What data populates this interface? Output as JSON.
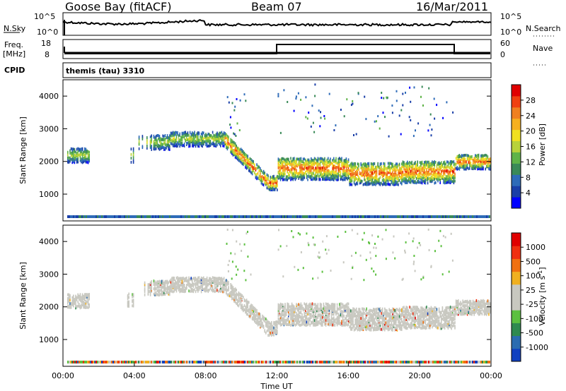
{
  "header": {
    "station": "Goose Bay (fitACF)",
    "beam": "Beam 07",
    "date": "16/Mar/2011"
  },
  "top_panels": {
    "nsky_label": "N.Sky",
    "nsky_ticks": [
      "10^5",
      "10^0"
    ],
    "nsearch_label": "N.Search",
    "nsearch_ticks": [
      "10^5",
      "10^0"
    ],
    "freq_label": "Freq.",
    "freq_unit": "[MHz]",
    "freq_ticks": [
      "18",
      "8"
    ],
    "nave_label": "Nave",
    "nave_ticks": [
      "60",
      "0"
    ],
    "cpid_label": "CPID",
    "cpid_value": "themis (tau) 3310"
  },
  "chart_data": [
    {
      "type": "heatmap",
      "title": "Power",
      "ylabel": "Slant Range [km]",
      "xlabel": "",
      "x_range_hours": [
        0,
        24
      ],
      "ylim": [
        180,
        4500
      ],
      "yticks": [
        "4000",
        "3000",
        "2000",
        "1000"
      ],
      "colorbar": {
        "label": "Power [dB]",
        "ticks": [
          "28",
          "24",
          "20",
          "16",
          "12",
          "8",
          "4"
        ],
        "colors": [
          "#0000ff",
          "#1a3fa8",
          "#2e6bb8",
          "#3a8a58",
          "#5fb348",
          "#b8d23a",
          "#f0e020",
          "#f6b020",
          "#f08020",
          "#f04010",
          "#e00000"
        ]
      }
    },
    {
      "type": "heatmap",
      "title": "Velocity",
      "ylabel": "Slant Range [km]",
      "xlabel": "Time UT",
      "x_range_hours": [
        0,
        24
      ],
      "ylim": [
        180,
        4500
      ],
      "yticks": [
        "4000",
        "3000",
        "2000",
        "1000"
      ],
      "xticks": [
        "00:00",
        "04:00",
        "08:00",
        "12:00",
        "16:00",
        "20:00",
        "00:00"
      ],
      "colorbar": {
        "label": "Velocity [m s^-1]",
        "ticks": [
          "1000",
          "500",
          "100",
          "25",
          "-25",
          "-100",
          "-500",
          "-1000"
        ],
        "colors": [
          "#1040c0",
          "#2b6cb0",
          "#2f8a50",
          "#5cc040",
          "#c8c8c0",
          "#c8c8c0",
          "#f0b020",
          "#f07010",
          "#f03010",
          "#e00000"
        ]
      }
    }
  ]
}
